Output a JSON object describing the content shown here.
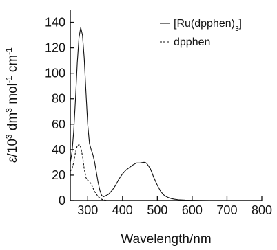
{
  "chart_data": {
    "type": "line",
    "xlabel": "Wavelength/nm",
    "ylabel": "ε/10³ dm³ mol⁻¹ cm⁻¹",
    "ylabel_parts": [
      {
        "text": "ε",
        "style": "italic"
      },
      {
        "text": "/10",
        "style": "normal"
      },
      {
        "text": "3",
        "style": "sup"
      },
      {
        "text": " dm",
        "style": "normal"
      },
      {
        "text": "3",
        "style": "sup"
      },
      {
        "text": " mol",
        "style": "normal"
      },
      {
        "text": "-1",
        "style": "sup"
      },
      {
        "text": " cm",
        "style": "normal"
      },
      {
        "text": "-1",
        "style": "sup"
      }
    ],
    "xlim": [
      250,
      800
    ],
    "ylim": [
      0,
      150
    ],
    "xticks": [
      300,
      400,
      500,
      600,
      700,
      800
    ],
    "yticks": [
      0,
      20,
      40,
      60,
      80,
      100,
      120,
      140
    ],
    "grid": false,
    "legend_position": "top-right",
    "series": [
      {
        "name": "[Ru(dpphen)3]",
        "name_parts": [
          {
            "text": "[Ru(dpphen)",
            "style": "normal"
          },
          {
            "text": "3",
            "style": "sub"
          },
          {
            "text": "]",
            "style": "normal"
          }
        ],
        "dash": "solid",
        "points": [
          [
            250,
            30
          ],
          [
            255,
            38
          ],
          [
            260,
            55
          ],
          [
            265,
            80
          ],
          [
            270,
            108
          ],
          [
            275,
            128
          ],
          [
            280,
            136
          ],
          [
            285,
            130
          ],
          [
            290,
            112
          ],
          [
            295,
            85
          ],
          [
            300,
            60
          ],
          [
            305,
            45
          ],
          [
            310,
            40
          ],
          [
            315,
            36
          ],
          [
            320,
            30
          ],
          [
            325,
            22
          ],
          [
            330,
            14
          ],
          [
            335,
            8
          ],
          [
            340,
            4
          ],
          [
            345,
            3
          ],
          [
            350,
            3.5
          ],
          [
            360,
            5
          ],
          [
            370,
            8
          ],
          [
            380,
            12
          ],
          [
            390,
            17
          ],
          [
            400,
            21
          ],
          [
            410,
            24
          ],
          [
            420,
            26
          ],
          [
            430,
            28
          ],
          [
            440,
            29.5
          ],
          [
            450,
            29.5
          ],
          [
            460,
            30
          ],
          [
            465,
            30
          ],
          [
            470,
            29
          ],
          [
            480,
            25
          ],
          [
            490,
            18
          ],
          [
            500,
            12
          ],
          [
            510,
            7
          ],
          [
            520,
            4
          ],
          [
            530,
            2.5
          ],
          [
            540,
            1.5
          ],
          [
            550,
            1
          ],
          [
            560,
            0.6
          ],
          [
            580,
            0.3
          ],
          [
            600,
            0.15
          ],
          [
            650,
            0
          ],
          [
            700,
            0
          ],
          [
            750,
            0
          ],
          [
            800,
            0
          ]
        ]
      },
      {
        "name": "dpphen",
        "dash": "dashed",
        "points": [
          [
            250,
            23
          ],
          [
            255,
            25
          ],
          [
            260,
            30
          ],
          [
            265,
            38
          ],
          [
            270,
            43
          ],
          [
            275,
            44
          ],
          [
            280,
            42
          ],
          [
            285,
            35
          ],
          [
            290,
            25
          ],
          [
            295,
            18
          ],
          [
            300,
            16
          ],
          [
            305,
            15
          ],
          [
            310,
            13
          ],
          [
            315,
            10
          ],
          [
            320,
            7
          ],
          [
            325,
            5
          ],
          [
            330,
            3
          ],
          [
            335,
            2
          ],
          [
            340,
            1
          ],
          [
            345,
            0.5
          ],
          [
            350,
            0.3
          ],
          [
            355,
            0
          ],
          [
            360,
            0
          ]
        ]
      }
    ]
  }
}
